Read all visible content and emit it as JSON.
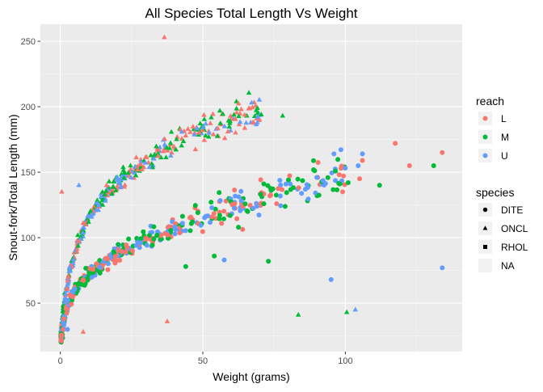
{
  "chart_data": {
    "type": "scatter",
    "title": "All Species Total Length Vs Weight",
    "xlabel": "Weight (grams)",
    "ylabel": "Snout-fork/Total Length (mm)",
    "xlim": [
      -7,
      141
    ],
    "ylim": [
      13,
      263
    ],
    "x_ticks": [
      0,
      50,
      100
    ],
    "y_ticks": [
      50,
      100,
      150,
      200,
      250
    ],
    "grid": true,
    "legend_position": "right",
    "colors": {
      "L": "#F8766D",
      "M": "#00BA38",
      "U": "#619CFF"
    },
    "legends": [
      {
        "title": "reach",
        "kind": "color",
        "items": [
          {
            "label": "L",
            "key": "L"
          },
          {
            "label": "M",
            "key": "M"
          },
          {
            "label": "U",
            "key": "U"
          }
        ]
      },
      {
        "title": "species",
        "kind": "shape",
        "items": [
          {
            "label": "DITE",
            "shape": "circle"
          },
          {
            "label": "ONCL",
            "shape": "triangle"
          },
          {
            "label": "RHOL",
            "shape": "square"
          },
          {
            "label": "NA",
            "shape": "none"
          }
        ]
      }
    ],
    "trends": [
      {
        "species": "ONCL",
        "shape": "triangle",
        "x_range": [
          0.2,
          70
        ],
        "points": [
          [
            0.2,
            26
          ],
          [
            1,
            45
          ],
          [
            3,
            72
          ],
          [
            6,
            96
          ],
          [
            10,
            116
          ],
          [
            15,
            131
          ],
          [
            20,
            142
          ],
          [
            30,
            158
          ],
          [
            40,
            172
          ],
          [
            50,
            182
          ],
          [
            60,
            192
          ],
          [
            70,
            196
          ]
        ]
      },
      {
        "species": "DITE",
        "shape": "circle",
        "x_range": [
          0.2,
          100
        ],
        "points": [
          [
            0.2,
            22
          ],
          [
            2,
            44
          ],
          [
            5,
            60
          ],
          [
            10,
            72
          ],
          [
            20,
            89
          ],
          [
            30,
            99
          ],
          [
            40,
            108
          ],
          [
            50,
            116
          ],
          [
            60,
            122
          ],
          [
            70,
            128
          ],
          [
            80,
            136
          ],
          [
            90,
            143
          ],
          [
            100,
            149
          ]
        ]
      }
    ],
    "points": [
      {
        "x": 36.5,
        "y": 253,
        "reach": "L",
        "species": "ONCL"
      },
      {
        "x": 37.5,
        "y": 36,
        "reach": "L",
        "species": "ONCL"
      },
      {
        "x": 0.5,
        "y": 135,
        "reach": "L",
        "species": "ONCL"
      },
      {
        "x": 8,
        "y": 28,
        "reach": "L",
        "species": "ONCL"
      },
      {
        "x": 78,
        "y": 193,
        "reach": "M",
        "species": "ONCL"
      },
      {
        "x": 70.5,
        "y": 194,
        "reach": "M",
        "species": "ONCL"
      },
      {
        "x": 83.5,
        "y": 41,
        "reach": "M",
        "species": "ONCL"
      },
      {
        "x": 100.5,
        "y": 43,
        "reach": "M",
        "species": "ONCL"
      },
      {
        "x": 103.5,
        "y": 45,
        "reach": "U",
        "species": "ONCL"
      },
      {
        "x": 6.5,
        "y": 140,
        "reach": "U",
        "species": "ONCL"
      },
      {
        "x": 117.5,
        "y": 172,
        "reach": "L",
        "species": "DITE"
      },
      {
        "x": 122.5,
        "y": 155,
        "reach": "L",
        "species": "DITE"
      },
      {
        "x": 131,
        "y": 155,
        "reach": "M",
        "species": "DITE"
      },
      {
        "x": 134,
        "y": 165,
        "reach": "L",
        "species": "DITE"
      },
      {
        "x": 134,
        "y": 77,
        "reach": "U",
        "species": "DITE"
      },
      {
        "x": 95,
        "y": 68,
        "reach": "U",
        "species": "DITE"
      },
      {
        "x": 96,
        "y": 164,
        "reach": "U",
        "species": "DITE"
      },
      {
        "x": 104.5,
        "y": 155,
        "reach": "U",
        "species": "DITE"
      },
      {
        "x": 106,
        "y": 164,
        "reach": "U",
        "species": "DITE"
      },
      {
        "x": 106,
        "y": 159,
        "reach": "L",
        "species": "DITE"
      },
      {
        "x": 105,
        "y": 145,
        "reach": "L",
        "species": "DITE"
      },
      {
        "x": 112,
        "y": 140,
        "reach": "M",
        "species": "DITE"
      },
      {
        "x": 101,
        "y": 142,
        "reach": "M",
        "species": "DITE"
      },
      {
        "x": 98,
        "y": 141,
        "reach": "M",
        "species": "DITE"
      },
      {
        "x": 44,
        "y": 78,
        "reach": "M",
        "species": "DITE"
      },
      {
        "x": 54,
        "y": 86,
        "reach": "M",
        "species": "DITE"
      },
      {
        "x": 57.5,
        "y": 83,
        "reach": "U",
        "species": "DITE"
      },
      {
        "x": 73,
        "y": 82,
        "reach": "M",
        "species": "DITE"
      },
      {
        "x": 62.5,
        "y": 108,
        "reach": "M",
        "species": "DITE"
      },
      {
        "x": 2.5,
        "y": 30,
        "reach": "U",
        "species": "DITE"
      }
    ]
  }
}
